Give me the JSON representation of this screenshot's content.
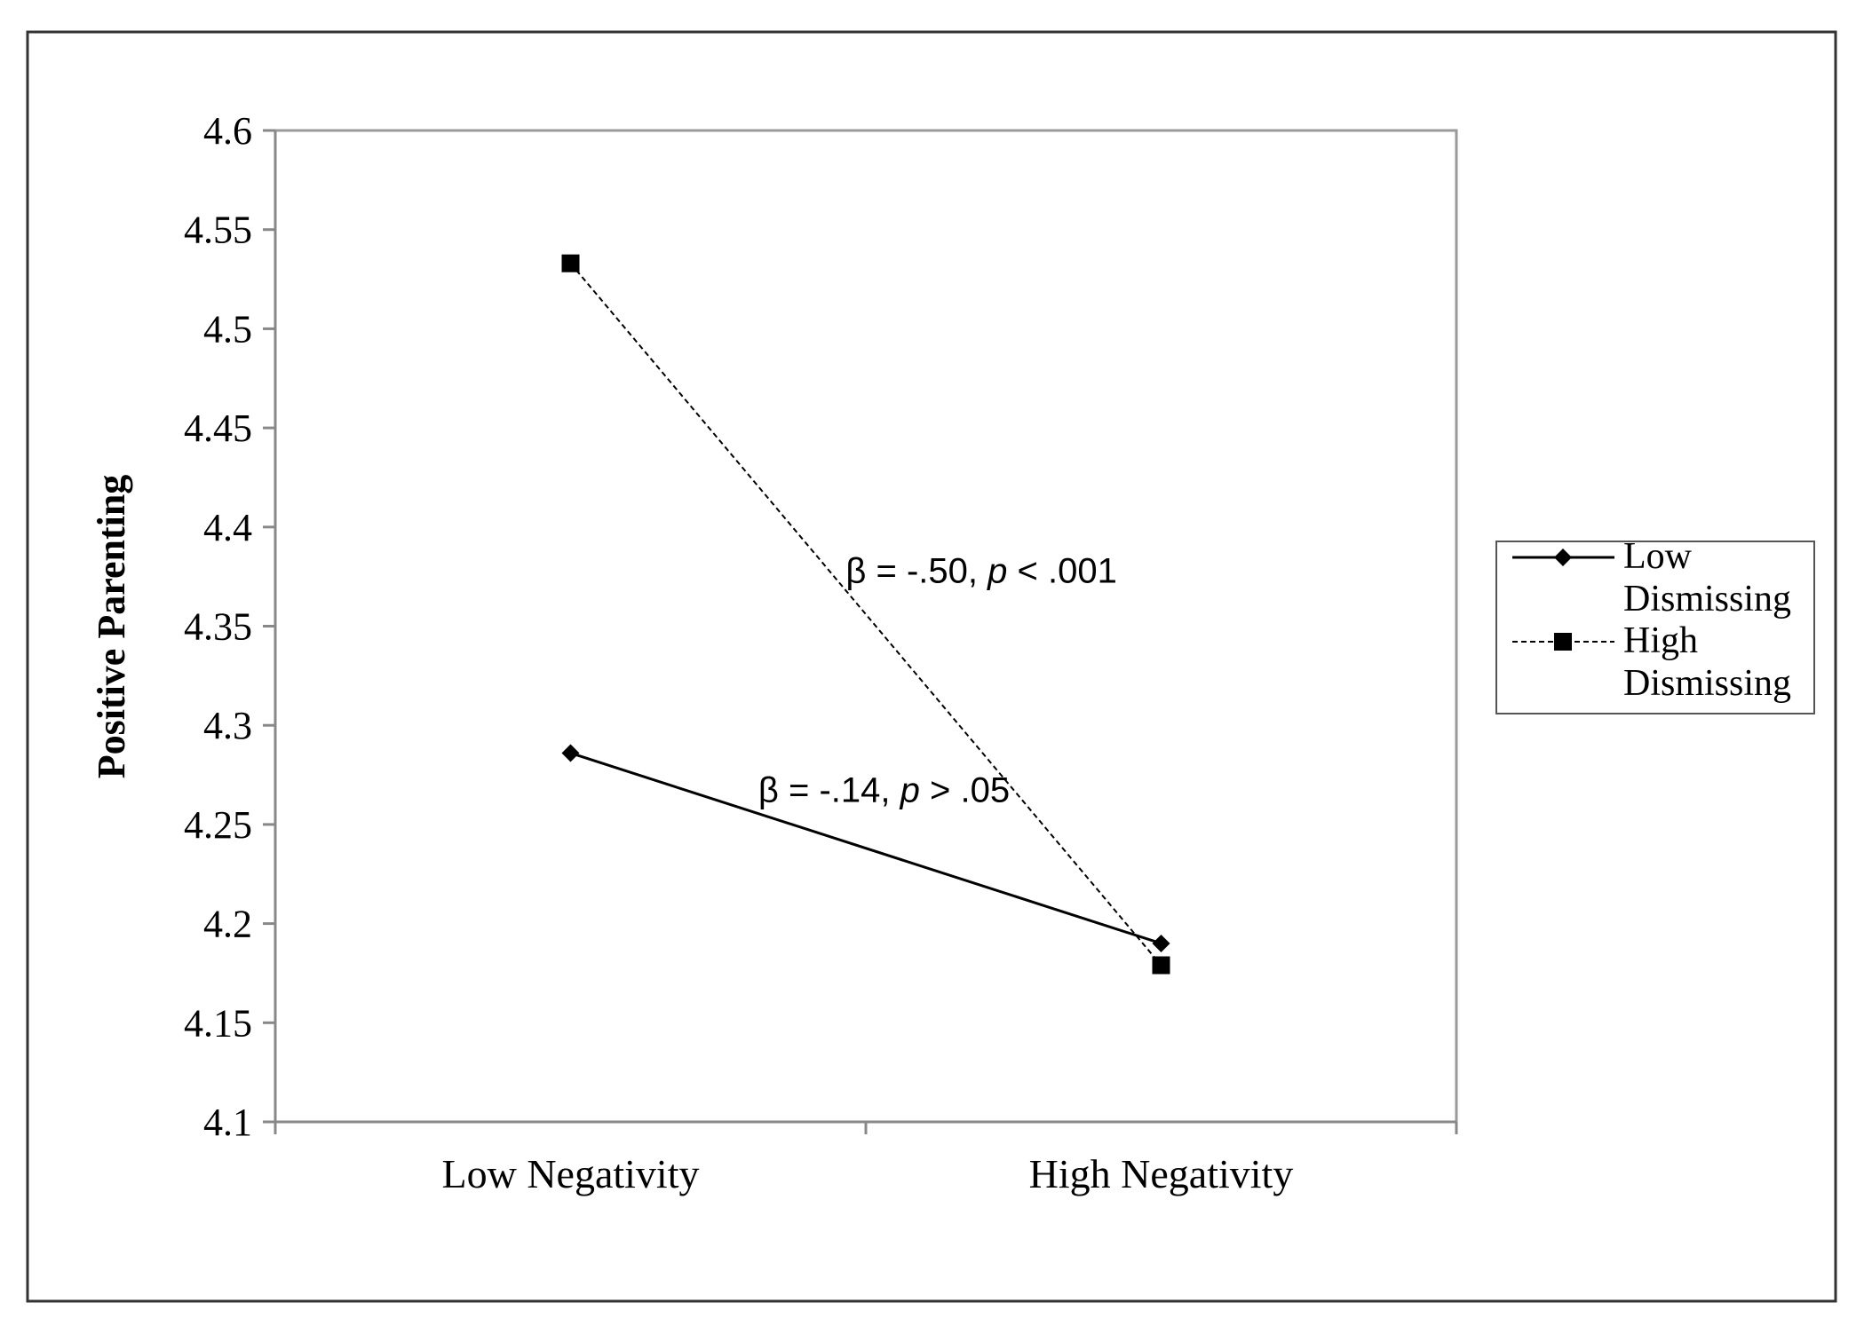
{
  "chart_data": {
    "type": "line",
    "title": "",
    "xlabel": "",
    "ylabel": "Positive Parenting",
    "categories": [
      "Low Negativity",
      "High Negativity"
    ],
    "ylim": [
      4.1,
      4.6
    ],
    "yticks": [
      "4.1",
      "4.15",
      "4.2",
      "4.25",
      "4.3",
      "4.35",
      "4.4",
      "4.45",
      "4.5",
      "4.55",
      "4.6"
    ],
    "grid": false,
    "legend_position": "right",
    "series": [
      {
        "name_lines": [
          "Low",
          "Dismissing"
        ],
        "values": [
          4.286,
          4.19
        ],
        "line_style": "solid",
        "marker": "diamond",
        "color": "#000000"
      },
      {
        "name_lines": [
          "High",
          "Dismissing"
        ],
        "values": [
          4.533,
          4.179
        ],
        "line_style": "dashed",
        "marker": "square",
        "color": "#000000"
      }
    ],
    "annotations": [
      {
        "prefix": "β = -.50, ",
        "italic": "p",
        "suffix": " < .001",
        "series_index": 1
      },
      {
        "prefix": "β = -.14, ",
        "italic": "p",
        "suffix": " > .05",
        "series_index": 0
      }
    ]
  }
}
